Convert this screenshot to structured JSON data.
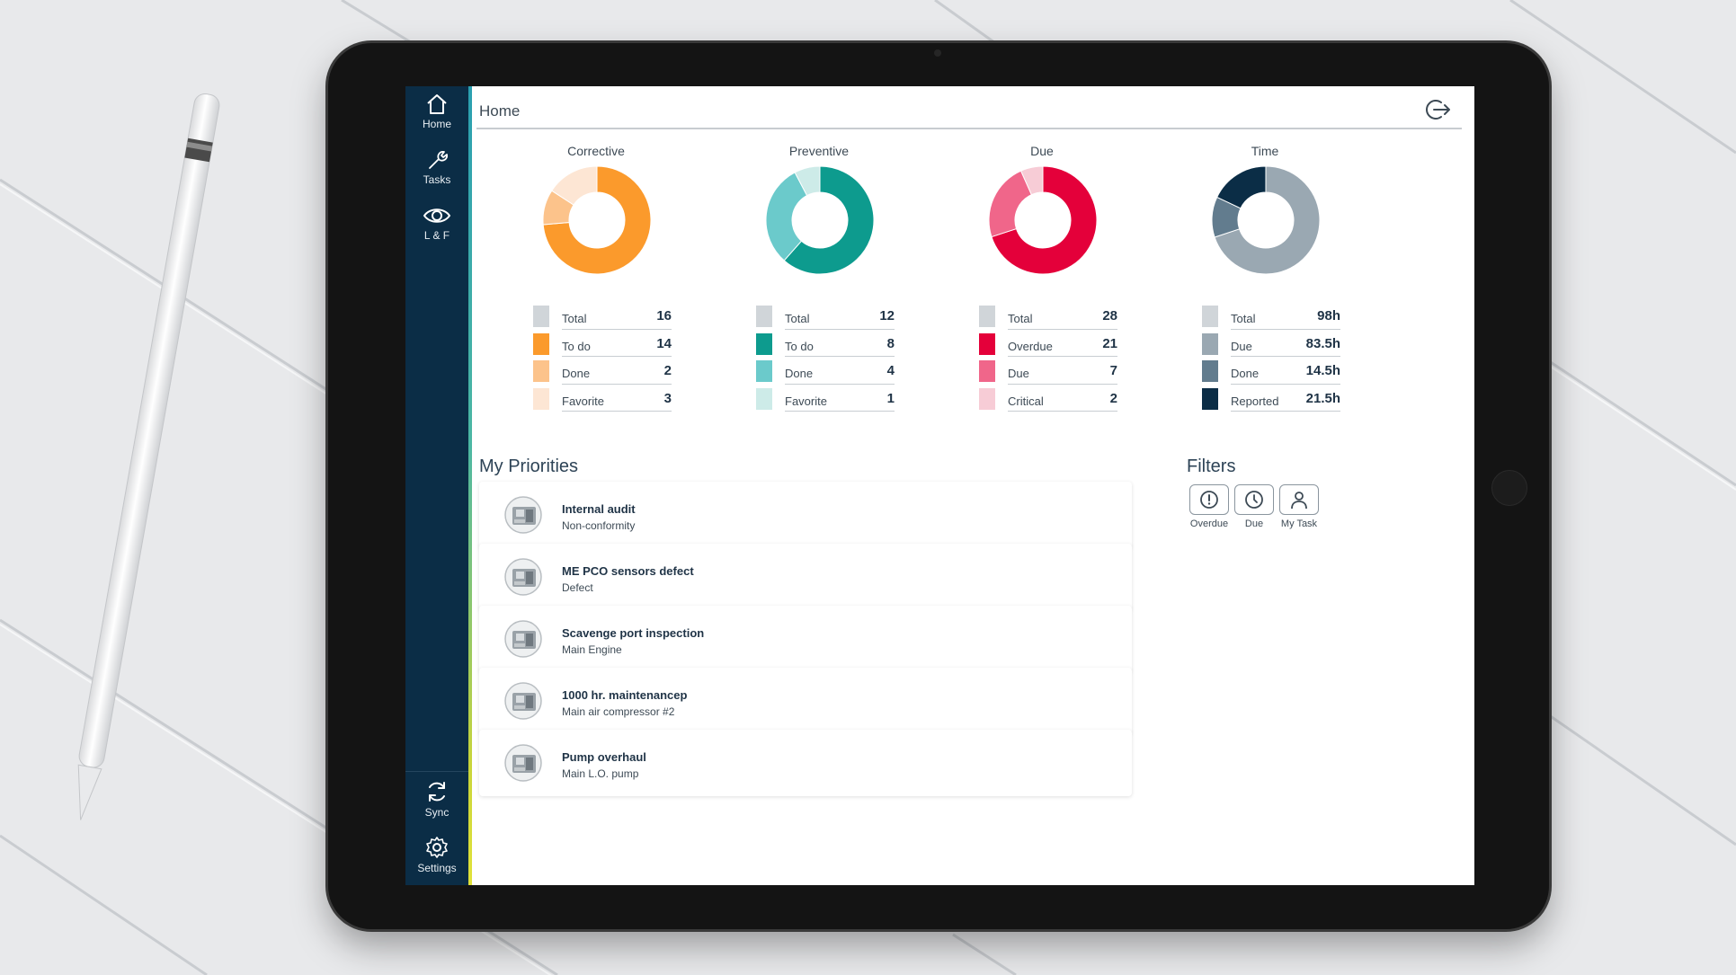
{
  "nav": {
    "items": [
      {
        "label": "Home",
        "icon": "home-icon"
      },
      {
        "label": "Tasks",
        "icon": "wrench-icon"
      },
      {
        "label": "L & F",
        "icon": "eye-icon"
      }
    ],
    "bottom": [
      {
        "label": "Sync",
        "icon": "sync-icon"
      },
      {
        "label": "Settings",
        "icon": "gear-icon"
      }
    ]
  },
  "header": {
    "title": "Home",
    "logout_icon": "logout-icon"
  },
  "charts": [
    {
      "title": "Corrective",
      "rows": [
        {
          "label": "Total",
          "value": "16",
          "color": "#d0d5d9"
        },
        {
          "label": "To do",
          "value": "14",
          "color": "#fb9a2c"
        },
        {
          "label": "Done",
          "value": "2",
          "color": "#fcc38b"
        },
        {
          "label": "Favorite",
          "value": "3",
          "color": "#fde6d4"
        }
      ]
    },
    {
      "title": "Preventive",
      "rows": [
        {
          "label": "Total",
          "value": "12",
          "color": "#d0d5d9"
        },
        {
          "label": "To do",
          "value": "8",
          "color": "#0d9b8e"
        },
        {
          "label": "Done",
          "value": "4",
          "color": "#6bcacb"
        },
        {
          "label": "Favorite",
          "value": "1",
          "color": "#cdebe8"
        }
      ]
    },
    {
      "title": "Due",
      "rows": [
        {
          "label": "Total",
          "value": "28",
          "color": "#d0d5d9"
        },
        {
          "label": "Overdue",
          "value": "21",
          "color": "#e4003a"
        },
        {
          "label": "Due",
          "value": "7",
          "color": "#f0668a"
        },
        {
          "label": "Critical",
          "value": "2",
          "color": "#f7ccd6"
        }
      ]
    },
    {
      "title": "Time",
      "rows": [
        {
          "label": "Total",
          "value": "98h",
          "color": "#d0d5d9"
        },
        {
          "label": "Due",
          "value": "83.5h",
          "color": "#9aa8b2"
        },
        {
          "label": "Done",
          "value": "14.5h",
          "color": "#627c8e"
        },
        {
          "label": "Reported",
          "value": "21.5h",
          "color": "#0b2d46"
        }
      ]
    }
  ],
  "chart_data": [
    {
      "type": "pie",
      "title": "Corrective",
      "categories": [
        "To do",
        "Done",
        "Favorite"
      ],
      "values": [
        14,
        2,
        3
      ]
    },
    {
      "type": "pie",
      "title": "Preventive",
      "categories": [
        "To do",
        "Done",
        "Favorite"
      ],
      "values": [
        8,
        4,
        1
      ]
    },
    {
      "type": "pie",
      "title": "Due",
      "categories": [
        "Overdue",
        "Due",
        "Critical"
      ],
      "values": [
        21,
        7,
        2
      ]
    },
    {
      "type": "pie",
      "title": "Time",
      "categories": [
        "Due",
        "Done",
        "Reported"
      ],
      "values": [
        83.5,
        14.5,
        21.5
      ]
    }
  ],
  "priorities": {
    "title": "My Priorities",
    "items": [
      {
        "title": "Internal audit",
        "subtitle": "Non-conformity"
      },
      {
        "title": "ME PCO sensors defect",
        "subtitle": "Defect"
      },
      {
        "title": "Scavenge port inspection",
        "subtitle": "Main Engine"
      },
      {
        "title": "1000 hr. maintenancep",
        "subtitle": "Main air compressor #2"
      },
      {
        "title": "Pump overhaul",
        "subtitle": "Main L.O. pump"
      }
    ]
  },
  "filters": {
    "title": "Filters",
    "items": [
      {
        "label": "Overdue",
        "icon": "alert-circle-icon"
      },
      {
        "label": "Due",
        "icon": "clock-icon"
      },
      {
        "label": "My Task",
        "icon": "user-icon"
      }
    ]
  }
}
